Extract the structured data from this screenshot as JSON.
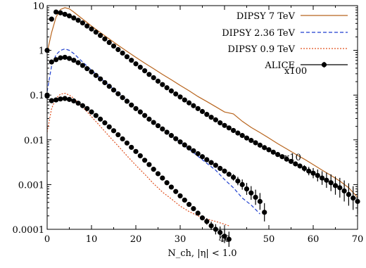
{
  "chart_data": {
    "type": "line",
    "xlabel": "N_ch, |η| < 1.0",
    "xlim": [
      0,
      70
    ],
    "ylim": [
      0.0001,
      10
    ],
    "yscale": "log",
    "x_ticks": [
      0,
      10,
      20,
      30,
      40,
      50,
      60,
      70
    ],
    "x_tick_labels": [
      "0",
      "10",
      "20",
      "30",
      "40",
      "50",
      "60",
      "70"
    ],
    "y_ticks": [
      0.0001,
      0.001,
      0.01,
      0.1,
      1,
      10
    ],
    "y_tick_labels": [
      "0.0001",
      "0.001",
      "0.01",
      "0.1",
      "1",
      "10"
    ],
    "legend_position": "top-right",
    "annotations": [
      {
        "text": "x100",
        "x": 53.5,
        "y": 0.3
      },
      {
        "text": "x10",
        "x": 53.5,
        "y": 0.0035
      }
    ],
    "series": [
      {
        "name": "DIPSY 7 TeV",
        "color": "#b8651e",
        "style": "solid",
        "x": [
          0,
          1,
          2,
          3,
          4,
          5,
          6,
          8,
          10,
          12,
          14,
          16,
          18,
          20,
          22,
          24,
          26,
          28,
          30,
          32,
          34,
          36,
          38,
          40,
          42,
          44,
          46,
          48,
          50,
          52,
          54,
          56,
          58,
          60,
          62,
          64,
          66,
          68,
          70
        ],
        "y": [
          0.9,
          2.5,
          5.5,
          8.2,
          9.0,
          8.5,
          7.2,
          5.0,
          3.5,
          2.5,
          1.8,
          1.3,
          0.95,
          0.7,
          0.52,
          0.39,
          0.29,
          0.22,
          0.165,
          0.125,
          0.093,
          0.072,
          0.055,
          0.042,
          0.038,
          0.026,
          0.019,
          0.0145,
          0.011,
          0.0082,
          0.0063,
          0.0048,
          0.0037,
          0.0028,
          0.0021,
          0.0016,
          0.0012,
          0.00085,
          0.00052
        ]
      },
      {
        "name": "DIPSY 2.36 TeV",
        "color": "#1f3fcf",
        "style": "dashed",
        "x": [
          0,
          1,
          2,
          3,
          4,
          5,
          6,
          8,
          10,
          12,
          14,
          16,
          18,
          20,
          22,
          24,
          26,
          28,
          30,
          32,
          34,
          36,
          38,
          40,
          42,
          44,
          46,
          48
        ],
        "y": [
          0.12,
          0.45,
          0.8,
          1.0,
          1.08,
          1.0,
          0.85,
          0.55,
          0.36,
          0.24,
          0.165,
          0.112,
          0.078,
          0.054,
          0.037,
          0.026,
          0.018,
          0.0124,
          0.0088,
          0.0062,
          0.0043,
          0.003,
          0.0021,
          0.0013,
          0.00085,
          0.0005,
          0.00035,
          0.00022
        ]
      },
      {
        "name": "DIPSY 0.9 TeV",
        "color": "#e0501f",
        "style": "dotted",
        "x": [
          0,
          1,
          2,
          3,
          4,
          5,
          6,
          8,
          10,
          12,
          14,
          16,
          18,
          20,
          22,
          24,
          26,
          28,
          30,
          32,
          34,
          36,
          38,
          40,
          41
        ],
        "y": [
          0.015,
          0.05,
          0.085,
          0.105,
          0.11,
          0.1,
          0.085,
          0.054,
          0.033,
          0.02,
          0.012,
          0.0073,
          0.0044,
          0.0027,
          0.0017,
          0.00105,
          0.00068,
          0.00048,
          0.00033,
          0.00025,
          0.0002,
          0.00017,
          0.00015,
          0.00013,
          0.00012
        ]
      },
      {
        "name": "ALICE",
        "color": "#000000",
        "style": "points-with-errorbars",
        "groups": [
          {
            "scale_label": "x100",
            "x": [
              0,
              1,
              2,
              3,
              4,
              5,
              6,
              7,
              8,
              9,
              10,
              11,
              12,
              13,
              14,
              15,
              16,
              17,
              18,
              19,
              20,
              21,
              22,
              23,
              24,
              25,
              26,
              27,
              28,
              29,
              30,
              31,
              32,
              33,
              34,
              35,
              36,
              37,
              38,
              39,
              40,
              41,
              42,
              43,
              44,
              45,
              46,
              47,
              48,
              49,
              50,
              51,
              52,
              53,
              54,
              55,
              56,
              57,
              58,
              59,
              60,
              61,
              62,
              63,
              64,
              65,
              66,
              67,
              68,
              69,
              70
            ],
            "y": [
              1.0,
              5.0,
              7.2,
              6.9,
              6.4,
              5.9,
              5.3,
              4.7,
              4.1,
              3.5,
              3.0,
              2.55,
              2.15,
              1.8,
              1.5,
              1.25,
              1.04,
              0.87,
              0.72,
              0.6,
              0.5,
              0.42,
              0.35,
              0.29,
              0.245,
              0.205,
              0.172,
              0.146,
              0.124,
              0.106,
              0.091,
              0.078,
              0.067,
              0.058,
              0.05,
              0.043,
              0.037,
              0.032,
              0.028,
              0.024,
              0.021,
              0.0185,
              0.0162,
              0.0142,
              0.0125,
              0.011,
              0.0097,
              0.0086,
              0.0076,
              0.0067,
              0.006,
              0.0053,
              0.0047,
              0.0042,
              0.0037,
              0.0033,
              0.0029,
              0.0026,
              0.0023,
              0.002,
              0.0018,
              0.0016,
              0.0014,
              0.00125,
              0.0011,
              0.00095,
              0.00085,
              0.00072,
              0.0006,
              0.0005,
              0.00042
            ],
            "err_from_index": 56
          },
          {
            "scale_label": "x10",
            "x": [
              0,
              1,
              2,
              3,
              4,
              5,
              6,
              7,
              8,
              9,
              10,
              11,
              12,
              13,
              14,
              15,
              16,
              17,
              18,
              19,
              20,
              21,
              22,
              23,
              24,
              25,
              26,
              27,
              28,
              29,
              30,
              31,
              32,
              33,
              34,
              35,
              36,
              37,
              38,
              39,
              40,
              41,
              42,
              43,
              44,
              45,
              46,
              47,
              48,
              49
            ],
            "y": [
              0.1,
              0.55,
              0.62,
              0.68,
              0.7,
              0.66,
              0.6,
              0.53,
              0.46,
              0.39,
              0.33,
              0.275,
              0.23,
              0.19,
              0.157,
              0.13,
              0.107,
              0.088,
              0.073,
              0.06,
              0.05,
              0.042,
              0.035,
              0.029,
              0.0245,
              0.0207,
              0.0175,
              0.0148,
              0.0125,
              0.0106,
              0.009,
              0.0077,
              0.0066,
              0.0057,
              0.0049,
              0.0042,
              0.0036,
              0.0031,
              0.0027,
              0.0023,
              0.002,
              0.0017,
              0.00145,
              0.0012,
              0.001,
              0.0008,
              0.00065,
              0.00052,
              0.00042,
              0.00024
            ],
            "err_from_index": 40
          },
          {
            "scale_label": "",
            "x": [
              0,
              1,
              2,
              3,
              4,
              5,
              6,
              7,
              8,
              9,
              10,
              11,
              12,
              13,
              14,
              15,
              16,
              17,
              18,
              19,
              20,
              21,
              22,
              23,
              24,
              25,
              26,
              27,
              28,
              29,
              30,
              31,
              32,
              33,
              34,
              35,
              36,
              37,
              38,
              39,
              40,
              41
            ],
            "y": [
              0.095,
              0.075,
              0.078,
              0.082,
              0.084,
              0.08,
              0.074,
              0.066,
              0.058,
              0.05,
              0.042,
              0.035,
              0.029,
              0.024,
              0.0195,
              0.016,
              0.013,
              0.0105,
              0.0085,
              0.0068,
              0.0055,
              0.0044,
              0.0035,
              0.0028,
              0.0022,
              0.00175,
              0.0014,
              0.0011,
              0.00088,
              0.0007,
              0.00056,
              0.00045,
              0.00036,
              0.00029,
              0.00023,
              0.00018,
              0.00015,
              0.00012,
              0.0001,
              8.5e-05,
              7e-05,
              6e-05
            ],
            "err_from_index": 34
          }
        ]
      }
    ]
  }
}
